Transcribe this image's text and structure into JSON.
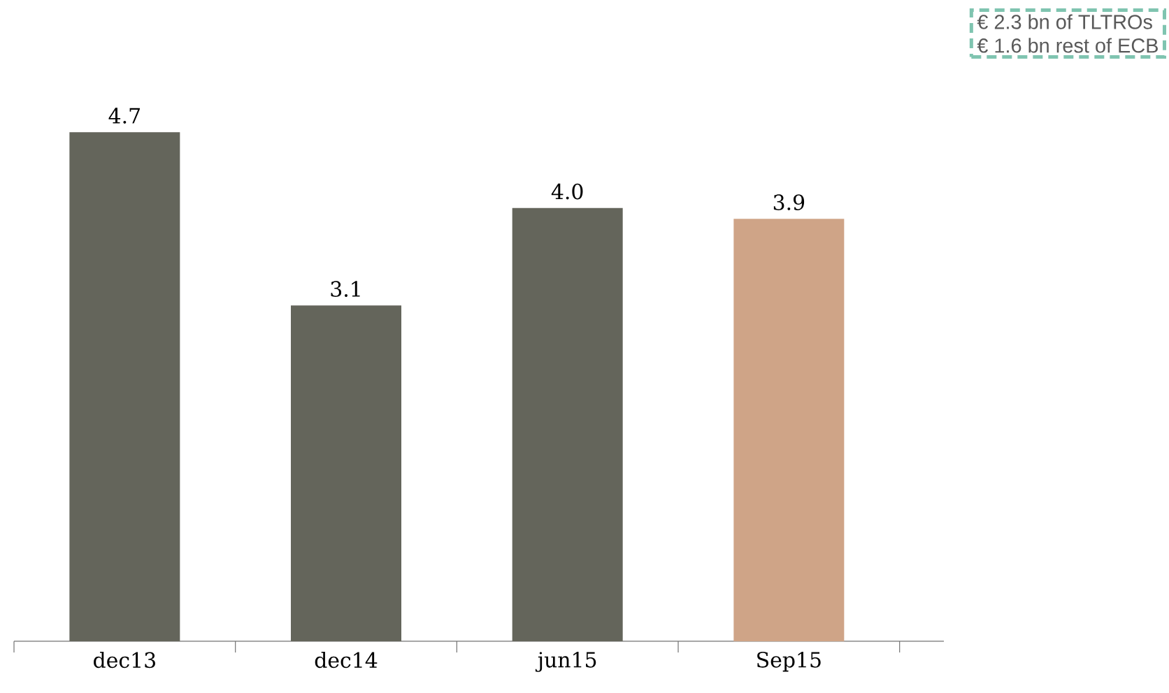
{
  "chart_data": {
    "type": "bar",
    "categories": [
      "dec13",
      "dec14",
      "jun15",
      "Sep15"
    ],
    "values": [
      4.7,
      3.1,
      4.0,
      3.9
    ],
    "colors": [
      "#64655b",
      "#64655b",
      "#64655b",
      "#cfa487"
    ],
    "value_labels": [
      "4.7",
      "3.1",
      "4.0",
      "3.9"
    ],
    "annotations": [
      "€ 2.3 bn of TLTROs",
      "€ 1.6 bn rest of ECB"
    ]
  }
}
